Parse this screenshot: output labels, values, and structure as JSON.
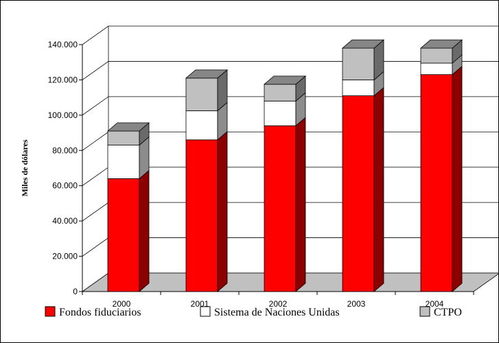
{
  "chart_data": {
    "type": "bar",
    "stacked": true,
    "three_d": true,
    "categories": [
      "2000",
      "2001",
      "2002",
      "2003",
      "2004"
    ],
    "series": [
      {
        "name": "Fondos fiduciarios",
        "color": "#ff0000",
        "values": [
          64000,
          86000,
          94000,
          111000,
          123000
        ]
      },
      {
        "name": "Sistema de Naciones Unidas",
        "color": "#ffffff",
        "values": [
          19000,
          16500,
          14000,
          9000,
          6500
        ]
      },
      {
        "name": "CTPO",
        "color": "#c0c0c0",
        "values": [
          8000,
          18500,
          9500,
          18000,
          8500
        ]
      }
    ],
    "title": "",
    "xlabel": "",
    "ylabel": "Miles de dólares",
    "ylim": [
      0,
      140000
    ],
    "yticks": [
      "0",
      "20.000",
      "40.000",
      "60.000",
      "80.000",
      "100.000",
      "120.000",
      "140.000"
    ],
    "grid": true,
    "legend_position": "bottom"
  }
}
